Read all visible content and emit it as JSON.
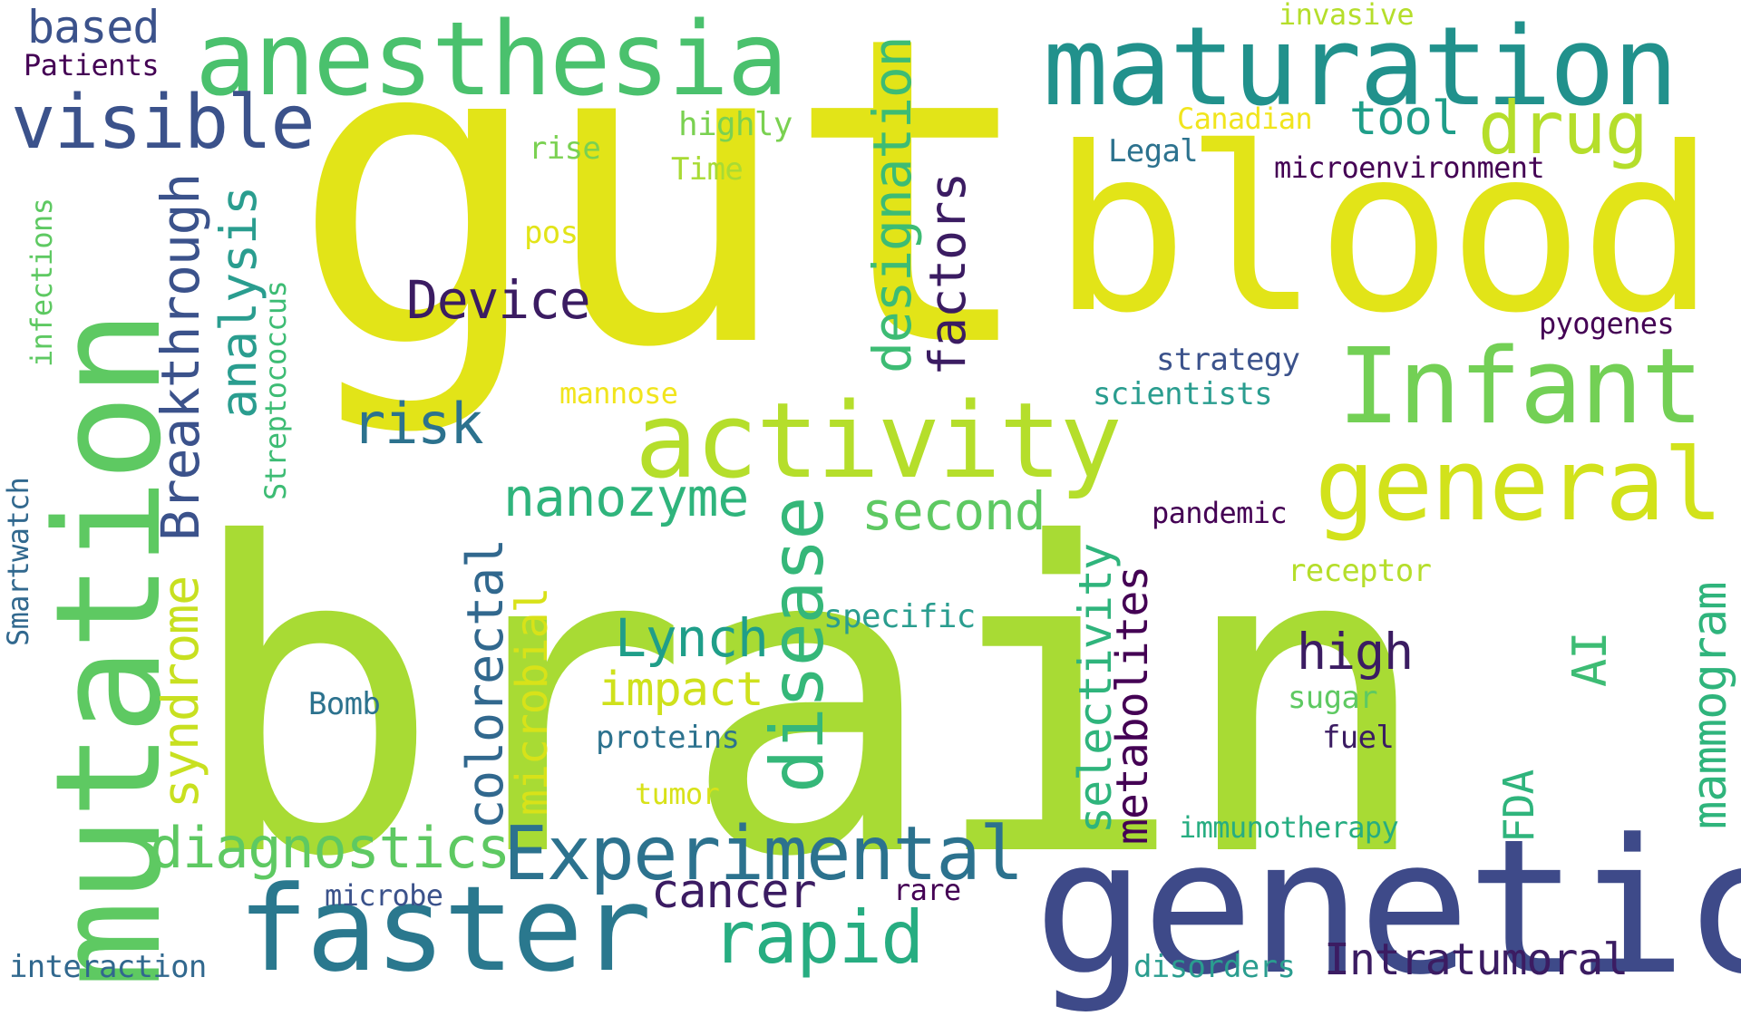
{
  "words": {
    "brain": {
      "text": "brain",
      "color": "#a8db34"
    },
    "gut": {
      "text": "gut",
      "color": "#e2e418"
    },
    "blood": {
      "text": "blood",
      "color": "#e2e418"
    },
    "genetic": {
      "text": "genetic",
      "color": "#3e4a89"
    },
    "mutation": {
      "text": "mutation",
      "color": "#5ec962"
    },
    "maturation": {
      "text": "maturation",
      "color": "#21918c"
    },
    "anesthesia": {
      "text": "anesthesia",
      "color": "#4ac16d"
    },
    "faster": {
      "text": "faster",
      "color": "#2a788e"
    },
    "infant": {
      "text": "Infant",
      "color": "#73d055"
    },
    "activity": {
      "text": "activity",
      "color": "#b5de2b"
    },
    "general": {
      "text": "general",
      "color": "#d2e21b"
    },
    "experimental": {
      "text": "Experimental",
      "color": "#2c728e"
    },
    "visible": {
      "text": "visible",
      "color": "#3b528b"
    },
    "drug": {
      "text": "drug",
      "color": "#b5de2b"
    },
    "disease": {
      "text": "disease",
      "color": "#35b779"
    },
    "breakthrough": {
      "text": "Breakthrough",
      "color": "#3b528b"
    },
    "designation": {
      "text": "designation",
      "color": "#3dbc74"
    },
    "analysis": {
      "text": "analysis",
      "color": "#2a9d8f"
    },
    "factors": {
      "text": "factors",
      "color": "#3b1c62"
    },
    "rapid": {
      "text": "rapid",
      "color": "#27ad81"
    },
    "diagnostics": {
      "text": "diagnostics",
      "color": "#5ec962"
    },
    "colorectal": {
      "text": "colorectal",
      "color": "#31688e"
    },
    "syndrome": {
      "text": "syndrome",
      "color": "#c8e020"
    },
    "device": {
      "text": "Device",
      "color": "#3b1c62"
    },
    "risk": {
      "text": "risk",
      "color": "#2c728e"
    },
    "nanozyme": {
      "text": "nanozyme",
      "color": "#2fb47c"
    },
    "second": {
      "text": "second",
      "color": "#5ec962"
    },
    "lynch": {
      "text": "Lynch",
      "color": "#1f9e89"
    },
    "selectivity": {
      "text": "selectivity",
      "color": "#2fb47c"
    },
    "metabolites": {
      "text": "metabolites",
      "color": "#440154"
    },
    "microbial": {
      "text": "microbial",
      "color": "#d8e219"
    },
    "cancer": {
      "text": "cancer",
      "color": "#3b1c62"
    },
    "mammogram": {
      "text": "mammogram",
      "color": "#2fb47c"
    },
    "high": {
      "text": "high",
      "color": "#3b1c62"
    },
    "impact": {
      "text": "impact",
      "color": "#cfe11c"
    },
    "intratumoral": {
      "text": "Intratumoral",
      "color": "#3b1c62"
    },
    "ai": {
      "text": "AI",
      "color": "#3dbc74"
    },
    "tool": {
      "text": "tool",
      "color": "#1f9e89"
    },
    "fda": {
      "text": "FDA",
      "color": "#2fb47c"
    },
    "based": {
      "text": "based",
      "color": "#3b528b"
    },
    "interaction": {
      "text": "interaction",
      "color": "#31688e"
    },
    "smartwatch": {
      "text": "Smartwatch",
      "color": "#31688e"
    },
    "streptococcus": {
      "text": "Streptococcus",
      "color": "#3dbc74"
    },
    "infections": {
      "text": "infections",
      "color": "#5ec962"
    },
    "patients": {
      "text": "Patients",
      "color": "#440154"
    },
    "highly": {
      "text": "highly",
      "color": "#7ad151"
    },
    "rise": {
      "text": "rise",
      "color": "#7ad151"
    },
    "time": {
      "text": "Time",
      "color": "#a8db34"
    },
    "post": {
      "text": "post",
      "color": "#e2e418"
    },
    "mannose": {
      "text": "mannose",
      "color": "#f1e51d"
    },
    "specific": {
      "text": "specific",
      "color": "#2a9d8f"
    },
    "bomb": {
      "text": "Bomb",
      "color": "#2c728e"
    },
    "proteins": {
      "text": "proteins",
      "color": "#2c728e"
    },
    "tumor": {
      "text": "tumor",
      "color": "#d8e219"
    },
    "microbe": {
      "text": "microbe",
      "color": "#3b528b"
    },
    "rare": {
      "text": "rare",
      "color": "#440154"
    },
    "disorders": {
      "text": "disorders",
      "color": "#2a9d8f"
    },
    "immunotherapy": {
      "text": "immunotherapy",
      "color": "#27ad81"
    },
    "receptor": {
      "text": "receptor",
      "color": "#b5de2b"
    },
    "sugar": {
      "text": "sugar",
      "color": "#5ec962"
    },
    "fuel": {
      "text": "fuel",
      "color": "#3b1c62"
    },
    "pandemic": {
      "text": "pandemic",
      "color": "#440154"
    },
    "scientists": {
      "text": "scientists",
      "color": "#2a9d8f"
    },
    "strategy": {
      "text": "strategy",
      "color": "#3b528b"
    },
    "pyogenes": {
      "text": "pyogenes",
      "color": "#440154"
    },
    "legal": {
      "text": "Legal",
      "color": "#2c728e"
    },
    "microenvironment": {
      "text": "microenvironment",
      "color": "#440154"
    },
    "canadian": {
      "text": "Canadian",
      "color": "#f1e51d"
    },
    "invasive": {
      "text": "invasive",
      "color": "#b5de2b"
    }
  }
}
